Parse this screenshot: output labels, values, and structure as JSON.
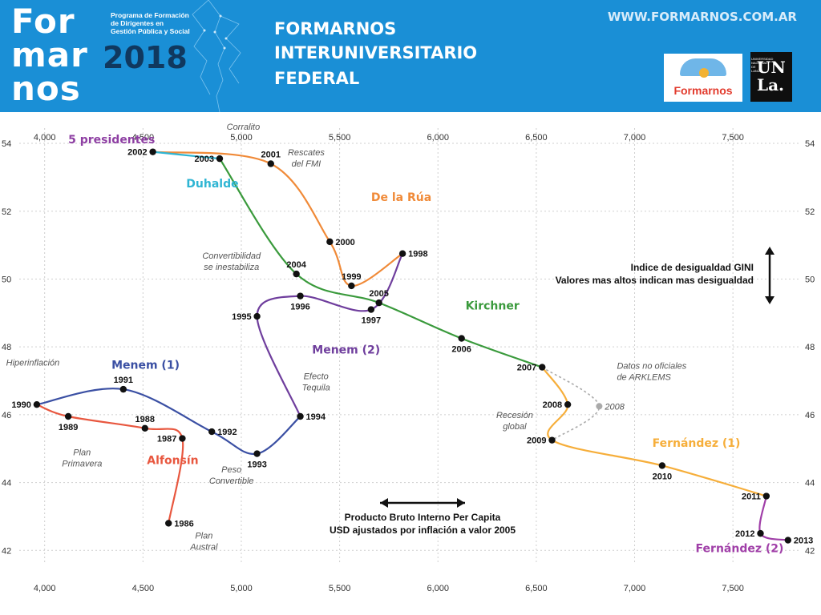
{
  "banner": {
    "brand_line1": "For",
    "brand_line2": "mar",
    "brand_line3": "nos",
    "brand_year": "2018",
    "brand_subtitle": "Programa de Formación de Dirigentes en Gestión Pública y Social",
    "title_line1": "FORMARNOS",
    "title_line2": "INTERUNIVERSITARIO",
    "title_line3": "FEDERAL",
    "url": "WWW.FORMARNOS.COM.AR",
    "logo_formarnos_text": "Formarnos",
    "logo_unla_text_top": "UN",
    "logo_unla_text_bottom": "La.",
    "logo_unla_side_text": "UNIVERSIDAD NACIONAL DE LANÚS"
  },
  "chart_data": {
    "type": "line",
    "x_ticks": [
      4000,
      4500,
      5000,
      5500,
      6000,
      6500,
      7000,
      7500
    ],
    "x_tick_labels": [
      "4,000",
      "4,500",
      "5,000",
      "5,500",
      "6,000",
      "6,500",
      "7,000",
      "7,500"
    ],
    "y_ticks": [
      42,
      44,
      46,
      48,
      50,
      52,
      54
    ],
    "y_tick_labels": [
      "42",
      "44",
      "46",
      "48",
      "50",
      "52",
      "54"
    ],
    "xlim": [
      3830,
      7850
    ],
    "ylim": [
      41.7,
      54.45
    ],
    "grid": true,
    "xlabel_line1": "Producto Bruto Interno Per Capita",
    "xlabel_line2": "USD ajustados por inflación a valor 2005",
    "ylabel_line1": "Indice de desigualdad GINI",
    "ylabel_line2": "Valores mas altos indican mas desigualdad",
    "points": [
      {
        "year": "1986",
        "x": 4630,
        "y": 42.8,
        "label_side": "right"
      },
      {
        "year": "1987",
        "x": 4700,
        "y": 45.3,
        "label_side": "left"
      },
      {
        "year": "1988",
        "x": 4510,
        "y": 45.6,
        "label_side": "above"
      },
      {
        "year": "1989",
        "x": 4120,
        "y": 45.95,
        "label_side": "below"
      },
      {
        "year": "1990",
        "x": 3960,
        "y": 46.3,
        "label_side": "left"
      },
      {
        "year": "1991",
        "x": 4400,
        "y": 46.75,
        "label_side": "above"
      },
      {
        "year": "1992",
        "x": 4850,
        "y": 45.5,
        "label_side": "right"
      },
      {
        "year": "1993",
        "x": 5080,
        "y": 44.85,
        "label_side": "below"
      },
      {
        "year": "1994",
        "x": 5300,
        "y": 45.95,
        "label_side": "right"
      },
      {
        "year": "1995",
        "x": 5080,
        "y": 48.9,
        "label_side": "left"
      },
      {
        "year": "1996",
        "x": 5300,
        "y": 49.5,
        "label_side": "below"
      },
      {
        "year": "1997",
        "x": 5660,
        "y": 49.1,
        "label_side": "below"
      },
      {
        "year": "1998",
        "x": 5820,
        "y": 50.75,
        "label_side": "right"
      },
      {
        "year": "1999",
        "x": 5560,
        "y": 49.8,
        "label_side": "above"
      },
      {
        "year": "2000",
        "x": 5450,
        "y": 51.1,
        "label_side": "right"
      },
      {
        "year": "2001",
        "x": 5150,
        "y": 53.4,
        "label_side": "above"
      },
      {
        "year": "2002",
        "x": 4550,
        "y": 53.75,
        "label_side": "left"
      },
      {
        "year": "2003",
        "x": 4890,
        "y": 53.55,
        "label_side": "left"
      },
      {
        "year": "2004",
        "x": 5280,
        "y": 50.15,
        "label_side": "above"
      },
      {
        "year": "2005",
        "x": 5700,
        "y": 49.3,
        "label_side": "above"
      },
      {
        "year": "2006",
        "x": 6120,
        "y": 48.25,
        "label_side": "below"
      },
      {
        "year": "2007",
        "x": 6530,
        "y": 47.4,
        "label_side": "left"
      },
      {
        "year": "2008",
        "x": 6660,
        "y": 46.3,
        "label_side": "left"
      },
      {
        "year": "2009",
        "x": 6580,
        "y": 45.25,
        "label_side": "left"
      },
      {
        "year": "2010",
        "x": 7140,
        "y": 44.5,
        "label_side": "below"
      },
      {
        "year": "2011",
        "x": 7670,
        "y": 43.6,
        "label_side": "left"
      },
      {
        "year": "2012",
        "x": 7640,
        "y": 42.5,
        "label_side": "left"
      },
      {
        "year": "2013",
        "x": 7780,
        "y": 42.3,
        "label_side": "right"
      }
    ],
    "series": [
      {
        "name": "Alfonsín",
        "color": "#e8573f",
        "years": [
          "1986",
          "1987",
          "1988",
          "1989",
          "1990"
        ],
        "label_x": 4520,
        "label_y": 44.55
      },
      {
        "name": "Menem (1)",
        "color": "#3a4fa3",
        "years": [
          "1990",
          "1991",
          "1992",
          "1993",
          "1994"
        ],
        "label_x": 4340,
        "label_y": 47.35
      },
      {
        "name": "Menem (2)",
        "color": "#6f3e9d",
        "years": [
          "1994",
          "1995",
          "1996",
          "1997",
          "1998"
        ],
        "label_x": 5360,
        "label_y": 47.8
      },
      {
        "name": "De la Rúa",
        "color": "#f08a38",
        "years": [
          "1998",
          "1999",
          "2000",
          "2001",
          "2002"
        ],
        "label_x": 5660,
        "label_y": 52.3
      },
      {
        "name": "5 presidentes",
        "color": "#8e3fa3",
        "years": [],
        "label_x": 4120,
        "label_y": 54.0
      },
      {
        "name": "Duhalde",
        "color": "#2fb5d3",
        "years": [
          "2002",
          "2003"
        ],
        "label_x": 4720,
        "label_y": 52.7
      },
      {
        "name": "Kirchner",
        "color": "#3a9a3c",
        "years": [
          "2003",
          "2004",
          "2005",
          "2006",
          "2007"
        ],
        "label_x": 6140,
        "label_y": 49.1
      },
      {
        "name": "Fernández (1)",
        "color": "#f6ae3a",
        "years": [
          "2007",
          "2008",
          "2009",
          "2010",
          "2011"
        ],
        "label_x": 7090,
        "label_y": 45.05
      },
      {
        "name": "Fernández (2)",
        "color": "#a03fa8",
        "years": [
          "2011",
          "2012",
          "2013"
        ],
        "label_x": 7310,
        "label_y": 41.95
      }
    ],
    "unofficial": {
      "label": "2008",
      "x": 6820,
      "y": 46.25,
      "color": "#aaaaaa",
      "note_line1": "Datos no oficiales",
      "note_line2": "de ARKLEMS"
    },
    "annotations": [
      {
        "lines": [
          "Corralito"
        ],
        "x": 5010,
        "y": 54.4
      },
      {
        "lines": [
          "Rescates",
          "del FMI"
        ],
        "x": 5330,
        "y": 53.65
      },
      {
        "lines": [
          "Convertibilidad",
          "se inestabiliza"
        ],
        "x": 4950,
        "y": 50.6
      },
      {
        "lines": [
          "Efecto",
          "Tequila"
        ],
        "x": 5380,
        "y": 47.05
      },
      {
        "lines": [
          "Hiperinflación"
        ],
        "x": 3940,
        "y": 47.45
      },
      {
        "lines": [
          "Plan",
          "Primavera"
        ],
        "x": 4190,
        "y": 44.8
      },
      {
        "lines": [
          "Peso",
          "Convertible"
        ],
        "x": 4950,
        "y": 44.3
      },
      {
        "lines": [
          "Plan",
          "Austral"
        ],
        "x": 4810,
        "y": 42.35
      },
      {
        "lines": [
          "Recesión",
          "global"
        ],
        "x": 6390,
        "y": 45.9
      }
    ]
  }
}
